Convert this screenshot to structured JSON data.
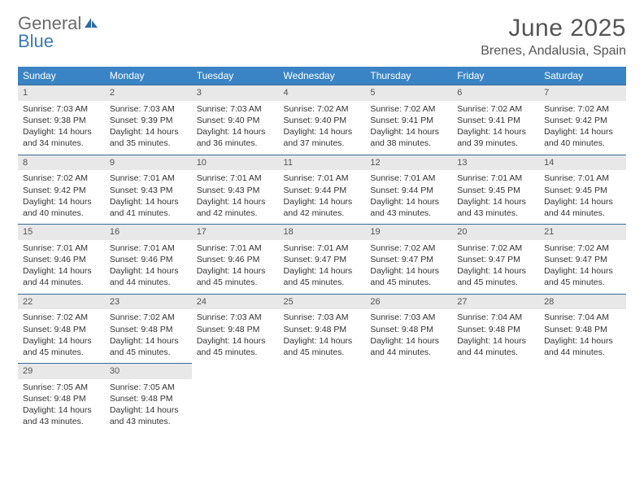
{
  "logo": {
    "text1": "General",
    "text2": "Blue"
  },
  "title": "June 2025",
  "location": "Brenes, Andalusia, Spain",
  "colors": {
    "header_bg": "#3a84c5",
    "header_text": "#ffffff",
    "daynum_bg": "#e8e8e8",
    "daynum_border": "#3a6a9a",
    "text": "#333333",
    "logo_general": "#6a6a6a",
    "logo_blue": "#3a7ab8"
  },
  "typography": {
    "title_fontsize": 30,
    "location_fontsize": 16,
    "header_fontsize": 12,
    "cell_fontsize": 10.5
  },
  "layout": {
    "columns": 7,
    "rows": 5,
    "cell_min_height": 78
  },
  "weekdays": [
    "Sunday",
    "Monday",
    "Tuesday",
    "Wednesday",
    "Thursday",
    "Friday",
    "Saturday"
  ],
  "days": [
    {
      "num": "1",
      "sunrise": "Sunrise: 7:03 AM",
      "sunset": "Sunset: 9:38 PM",
      "daylight": "Daylight: 14 hours and 34 minutes."
    },
    {
      "num": "2",
      "sunrise": "Sunrise: 7:03 AM",
      "sunset": "Sunset: 9:39 PM",
      "daylight": "Daylight: 14 hours and 35 minutes."
    },
    {
      "num": "3",
      "sunrise": "Sunrise: 7:03 AM",
      "sunset": "Sunset: 9:40 PM",
      "daylight": "Daylight: 14 hours and 36 minutes."
    },
    {
      "num": "4",
      "sunrise": "Sunrise: 7:02 AM",
      "sunset": "Sunset: 9:40 PM",
      "daylight": "Daylight: 14 hours and 37 minutes."
    },
    {
      "num": "5",
      "sunrise": "Sunrise: 7:02 AM",
      "sunset": "Sunset: 9:41 PM",
      "daylight": "Daylight: 14 hours and 38 minutes."
    },
    {
      "num": "6",
      "sunrise": "Sunrise: 7:02 AM",
      "sunset": "Sunset: 9:41 PM",
      "daylight": "Daylight: 14 hours and 39 minutes."
    },
    {
      "num": "7",
      "sunrise": "Sunrise: 7:02 AM",
      "sunset": "Sunset: 9:42 PM",
      "daylight": "Daylight: 14 hours and 40 minutes."
    },
    {
      "num": "8",
      "sunrise": "Sunrise: 7:02 AM",
      "sunset": "Sunset: 9:42 PM",
      "daylight": "Daylight: 14 hours and 40 minutes."
    },
    {
      "num": "9",
      "sunrise": "Sunrise: 7:01 AM",
      "sunset": "Sunset: 9:43 PM",
      "daylight": "Daylight: 14 hours and 41 minutes."
    },
    {
      "num": "10",
      "sunrise": "Sunrise: 7:01 AM",
      "sunset": "Sunset: 9:43 PM",
      "daylight": "Daylight: 14 hours and 42 minutes."
    },
    {
      "num": "11",
      "sunrise": "Sunrise: 7:01 AM",
      "sunset": "Sunset: 9:44 PM",
      "daylight": "Daylight: 14 hours and 42 minutes."
    },
    {
      "num": "12",
      "sunrise": "Sunrise: 7:01 AM",
      "sunset": "Sunset: 9:44 PM",
      "daylight": "Daylight: 14 hours and 43 minutes."
    },
    {
      "num": "13",
      "sunrise": "Sunrise: 7:01 AM",
      "sunset": "Sunset: 9:45 PM",
      "daylight": "Daylight: 14 hours and 43 minutes."
    },
    {
      "num": "14",
      "sunrise": "Sunrise: 7:01 AM",
      "sunset": "Sunset: 9:45 PM",
      "daylight": "Daylight: 14 hours and 44 minutes."
    },
    {
      "num": "15",
      "sunrise": "Sunrise: 7:01 AM",
      "sunset": "Sunset: 9:46 PM",
      "daylight": "Daylight: 14 hours and 44 minutes."
    },
    {
      "num": "16",
      "sunrise": "Sunrise: 7:01 AM",
      "sunset": "Sunset: 9:46 PM",
      "daylight": "Daylight: 14 hours and 44 minutes."
    },
    {
      "num": "17",
      "sunrise": "Sunrise: 7:01 AM",
      "sunset": "Sunset: 9:46 PM",
      "daylight": "Daylight: 14 hours and 45 minutes."
    },
    {
      "num": "18",
      "sunrise": "Sunrise: 7:01 AM",
      "sunset": "Sunset: 9:47 PM",
      "daylight": "Daylight: 14 hours and 45 minutes."
    },
    {
      "num": "19",
      "sunrise": "Sunrise: 7:02 AM",
      "sunset": "Sunset: 9:47 PM",
      "daylight": "Daylight: 14 hours and 45 minutes."
    },
    {
      "num": "20",
      "sunrise": "Sunrise: 7:02 AM",
      "sunset": "Sunset: 9:47 PM",
      "daylight": "Daylight: 14 hours and 45 minutes."
    },
    {
      "num": "21",
      "sunrise": "Sunrise: 7:02 AM",
      "sunset": "Sunset: 9:47 PM",
      "daylight": "Daylight: 14 hours and 45 minutes."
    },
    {
      "num": "22",
      "sunrise": "Sunrise: 7:02 AM",
      "sunset": "Sunset: 9:48 PM",
      "daylight": "Daylight: 14 hours and 45 minutes."
    },
    {
      "num": "23",
      "sunrise": "Sunrise: 7:02 AM",
      "sunset": "Sunset: 9:48 PM",
      "daylight": "Daylight: 14 hours and 45 minutes."
    },
    {
      "num": "24",
      "sunrise": "Sunrise: 7:03 AM",
      "sunset": "Sunset: 9:48 PM",
      "daylight": "Daylight: 14 hours and 45 minutes."
    },
    {
      "num": "25",
      "sunrise": "Sunrise: 7:03 AM",
      "sunset": "Sunset: 9:48 PM",
      "daylight": "Daylight: 14 hours and 45 minutes."
    },
    {
      "num": "26",
      "sunrise": "Sunrise: 7:03 AM",
      "sunset": "Sunset: 9:48 PM",
      "daylight": "Daylight: 14 hours and 44 minutes."
    },
    {
      "num": "27",
      "sunrise": "Sunrise: 7:04 AM",
      "sunset": "Sunset: 9:48 PM",
      "daylight": "Daylight: 14 hours and 44 minutes."
    },
    {
      "num": "28",
      "sunrise": "Sunrise: 7:04 AM",
      "sunset": "Sunset: 9:48 PM",
      "daylight": "Daylight: 14 hours and 44 minutes."
    },
    {
      "num": "29",
      "sunrise": "Sunrise: 7:05 AM",
      "sunset": "Sunset: 9:48 PM",
      "daylight": "Daylight: 14 hours and 43 minutes."
    },
    {
      "num": "30",
      "sunrise": "Sunrise: 7:05 AM",
      "sunset": "Sunset: 9:48 PM",
      "daylight": "Daylight: 14 hours and 43 minutes."
    }
  ]
}
